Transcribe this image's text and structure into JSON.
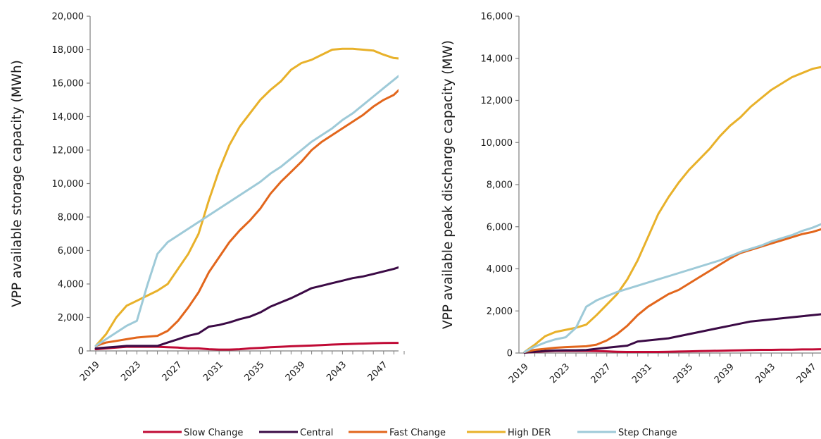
{
  "legend": [
    {
      "name": "Slow Change",
      "color": "#C00A35"
    },
    {
      "name": "Central",
      "color": "#3B0A45"
    },
    {
      "name": "Fast Change",
      "color": "#E2661C"
    },
    {
      "name": "High DER",
      "color": "#E8B12A"
    },
    {
      "name": "Step Change",
      "color": "#9ECAD8"
    }
  ],
  "chart_data": [
    {
      "type": "line",
      "xlabel": "",
      "ylabel": "VPP available storage capacity (MWh)",
      "ylim": [
        0,
        20000
      ],
      "yticks": [
        "0",
        "2,000",
        "4,000",
        "6,000",
        "8,000",
        "10,000",
        "12,000",
        "14,000",
        "16,000",
        "18,000",
        "20,000"
      ],
      "xticks": [
        "2019",
        "2023",
        "2027",
        "2031",
        "2035",
        "2039",
        "2043",
        "2047"
      ],
      "x": [
        2019,
        2020,
        2021,
        2022,
        2023,
        2024,
        2025,
        2026,
        2027,
        2028,
        2029,
        2030,
        2031,
        2032,
        2033,
        2034,
        2035,
        2036,
        2037,
        2038,
        2039,
        2040,
        2041,
        2042,
        2043,
        2044,
        2045,
        2046,
        2047,
        2048,
        2049
      ],
      "series": [
        {
          "name": "Slow Change",
          "color": "#C00A35",
          "values": [
            100,
            150,
            200,
            250,
            250,
            250,
            250,
            220,
            200,
            150,
            150,
            100,
            80,
            80,
            100,
            150,
            180,
            220,
            250,
            280,
            300,
            320,
            350,
            380,
            400,
            420,
            440,
            460,
            470,
            480,
            480
          ]
        },
        {
          "name": "Central",
          "color": "#3B0A45",
          "values": [
            150,
            200,
            250,
            300,
            300,
            300,
            300,
            500,
            700,
            900,
            1050,
            1450,
            1550,
            1700,
            1900,
            2050,
            2300,
            2650,
            2900,
            3150,
            3450,
            3750,
            3900,
            4050,
            4200,
            4350,
            4450,
            4600,
            4750,
            4900,
            5100
          ]
        },
        {
          "name": "Fast Change",
          "color": "#E2661C",
          "values": [
            300,
            500,
            600,
            700,
            800,
            850,
            900,
            1200,
            1800,
            2600,
            3500,
            4700,
            5600,
            6500,
            7200,
            7800,
            8500,
            9400,
            10100,
            10700,
            11300,
            12000,
            12500,
            12900,
            13300,
            13700,
            14100,
            14600,
            15000,
            15300,
            15900
          ]
        },
        {
          "name": "High DER",
          "color": "#E8B12A",
          "values": [
            300,
            1000,
            2000,
            2700,
            3000,
            3300,
            3600,
            4000,
            4900,
            5800,
            7000,
            9000,
            10800,
            12300,
            13400,
            14200,
            15000,
            15600,
            16100,
            16800,
            17200,
            17400,
            17700,
            18000,
            18050,
            18050,
            18000,
            17950,
            17700,
            17500,
            17450
          ]
        },
        {
          "name": "Step Change",
          "color": "#9ECAD8",
          "values": [
            300,
            700,
            1100,
            1500,
            1800,
            3900,
            5800,
            6500,
            6900,
            7300,
            7700,
            8100,
            8500,
            8900,
            9300,
            9700,
            10100,
            10600,
            11000,
            11500,
            12000,
            12500,
            12900,
            13300,
            13800,
            14200,
            14700,
            15200,
            15700,
            16200,
            16700
          ]
        }
      ]
    },
    {
      "type": "line",
      "xlabel": "",
      "ylabel": "VPP available peak discharge capacity (MW)",
      "ylim": [
        0,
        16000
      ],
      "yticks": [
        "0",
        "2,000",
        "4,000",
        "6,000",
        "8,000",
        "10,000",
        "12,000",
        "14,000",
        "16,000"
      ],
      "xticks": [
        "2019",
        "2023",
        "2027",
        "2031",
        "2035",
        "2039",
        "2043",
        "2047"
      ],
      "x": [
        2019,
        2020,
        2021,
        2022,
        2023,
        2024,
        2025,
        2026,
        2027,
        2028,
        2029,
        2030,
        2031,
        2032,
        2033,
        2034,
        2035,
        2036,
        2037,
        2038,
        2039,
        2040,
        2041,
        2042,
        2043,
        2044,
        2045,
        2046,
        2047,
        2048,
        2049
      ],
      "series": [
        {
          "name": "Slow Change",
          "color": "#C00A35",
          "values": [
            20,
            50,
            80,
            100,
            100,
            100,
            100,
            90,
            80,
            60,
            50,
            50,
            50,
            50,
            60,
            70,
            80,
            90,
            100,
            110,
            120,
            130,
            140,
            150,
            150,
            160,
            160,
            170,
            170,
            180,
            180
          ]
        },
        {
          "name": "Central",
          "color": "#3B0A45",
          "values": [
            20,
            60,
            100,
            120,
            130,
            130,
            140,
            200,
            250,
            300,
            350,
            550,
            600,
            650,
            700,
            800,
            900,
            1000,
            1100,
            1200,
            1300,
            1400,
            1500,
            1550,
            1600,
            1650,
            1700,
            1750,
            1800,
            1850,
            1950
          ]
        },
        {
          "name": "Fast Change",
          "color": "#E2661C",
          "values": [
            50,
            150,
            200,
            250,
            280,
            300,
            320,
            400,
            600,
            900,
            1300,
            1800,
            2200,
            2500,
            2800,
            3000,
            3300,
            3600,
            3900,
            4200,
            4500,
            4750,
            4900,
            5050,
            5200,
            5350,
            5500,
            5650,
            5750,
            5900,
            6100
          ]
        },
        {
          "name": "High DER",
          "color": "#E8B12A",
          "values": [
            50,
            400,
            800,
            1000,
            1100,
            1200,
            1350,
            1800,
            2300,
            2800,
            3500,
            4400,
            5500,
            6600,
            7400,
            8100,
            8700,
            9200,
            9700,
            10300,
            10800,
            11200,
            11700,
            12100,
            12500,
            12800,
            13100,
            13300,
            13500,
            13600,
            13800
          ]
        },
        {
          "name": "Step Change",
          "color": "#9ECAD8",
          "values": [
            50,
            300,
            500,
            650,
            750,
            1200,
            2200,
            2500,
            2700,
            2900,
            3050,
            3200,
            3350,
            3500,
            3650,
            3800,
            3950,
            4100,
            4250,
            4400,
            4600,
            4800,
            4950,
            5100,
            5300,
            5450,
            5600,
            5800,
            5950,
            6150,
            6400
          ]
        }
      ]
    }
  ]
}
